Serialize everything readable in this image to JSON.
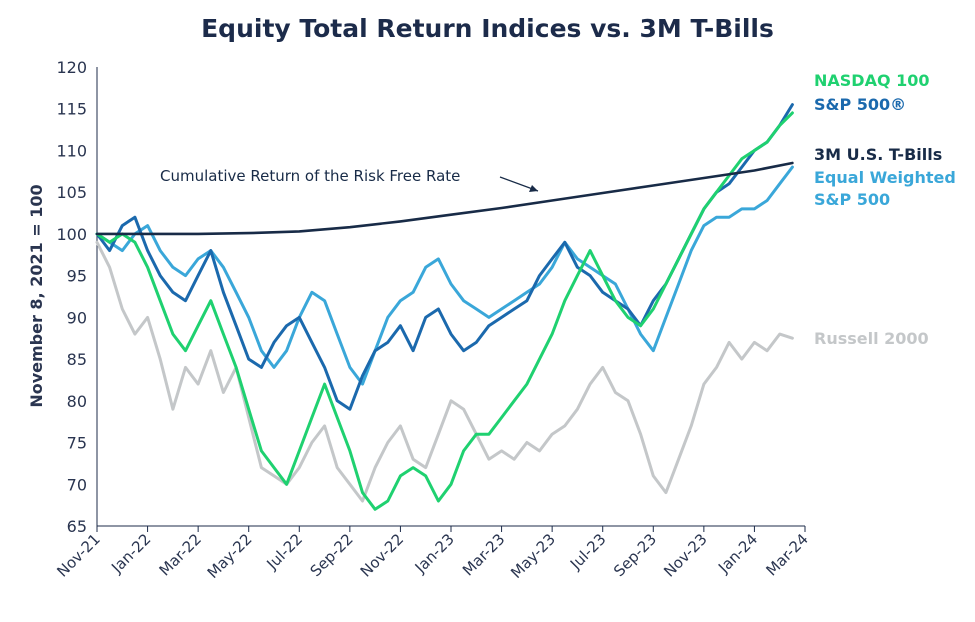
{
  "chart_data": {
    "type": "line",
    "title": "Equity Total Return Indices vs. 3M T-Bills",
    "ylabel": "November 8, 2021 = 100",
    "xlabel": "",
    "ylim": [
      65,
      120
    ],
    "yticks": [
      "65",
      "70",
      "75",
      "80",
      "85",
      "90",
      "95",
      "100",
      "105",
      "110",
      "115",
      "120"
    ],
    "xticks": [
      "Nov-21",
      "Jan-22",
      "Mar-22",
      "May-22",
      "Jul-22",
      "Sep-22",
      "Nov-22",
      "Jan-23",
      "Mar-23",
      "May-23",
      "Jul-23",
      "Sep-23",
      "Nov-23",
      "Jan-24",
      "Mar-24"
    ],
    "x_unit": "months since Nov-21 (0 = Nov-21, 28 = Mar-24)",
    "grid": false,
    "legend": "labels at right end of lines",
    "annotation": "Cumulative Return of the Risk Free Rate",
    "series": [
      {
        "name": "Russell 2000",
        "color": "#c4c7c9",
        "points": [
          [
            0,
            99
          ],
          [
            0.5,
            96
          ],
          [
            1,
            91
          ],
          [
            1.5,
            88
          ],
          [
            2,
            90
          ],
          [
            2.5,
            85
          ],
          [
            3,
            79
          ],
          [
            3.5,
            84
          ],
          [
            4,
            82
          ],
          [
            4.5,
            86
          ],
          [
            5,
            81
          ],
          [
            5.5,
            84
          ],
          [
            6,
            78
          ],
          [
            6.5,
            72
          ],
          [
            7,
            71
          ],
          [
            7.5,
            70
          ],
          [
            8,
            72
          ],
          [
            8.5,
            75
          ],
          [
            9,
            77
          ],
          [
            9.5,
            72
          ],
          [
            10,
            70
          ],
          [
            10.5,
            68
          ],
          [
            11,
            72
          ],
          [
            11.5,
            75
          ],
          [
            12,
            77
          ],
          [
            12.5,
            73
          ],
          [
            13,
            72
          ],
          [
            13.5,
            76
          ],
          [
            14,
            80
          ],
          [
            14.5,
            79
          ],
          [
            15,
            76
          ],
          [
            15.5,
            73
          ],
          [
            16,
            74
          ],
          [
            16.5,
            73
          ],
          [
            17,
            75
          ],
          [
            17.5,
            74
          ],
          [
            18,
            76
          ],
          [
            18.5,
            77
          ],
          [
            19,
            79
          ],
          [
            19.5,
            82
          ],
          [
            20,
            84
          ],
          [
            20.5,
            81
          ],
          [
            21,
            80
          ],
          [
            21.5,
            76
          ],
          [
            22,
            71
          ],
          [
            22.5,
            69
          ],
          [
            23,
            73
          ],
          [
            23.5,
            77
          ],
          [
            24,
            82
          ],
          [
            24.5,
            84
          ],
          [
            25,
            87
          ],
          [
            25.5,
            85
          ],
          [
            26,
            87
          ],
          [
            26.5,
            86
          ],
          [
            27,
            88
          ],
          [
            27.5,
            87.5
          ]
        ]
      },
      {
        "name": "Equal Weighted S&P 500",
        "color": "#3aa7d9",
        "points": [
          [
            0,
            100
          ],
          [
            0.5,
            99
          ],
          [
            1,
            98
          ],
          [
            1.5,
            100
          ],
          [
            2,
            101
          ],
          [
            2.5,
            98
          ],
          [
            3,
            96
          ],
          [
            3.5,
            95
          ],
          [
            4,
            97
          ],
          [
            4.5,
            98
          ],
          [
            5,
            96
          ],
          [
            5.5,
            93
          ],
          [
            6,
            90
          ],
          [
            6.5,
            86
          ],
          [
            7,
            84
          ],
          [
            7.5,
            86
          ],
          [
            8,
            90
          ],
          [
            8.5,
            93
          ],
          [
            9,
            92
          ],
          [
            9.5,
            88
          ],
          [
            10,
            84
          ],
          [
            10.5,
            82
          ],
          [
            11,
            86
          ],
          [
            11.5,
            90
          ],
          [
            12,
            92
          ],
          [
            12.5,
            93
          ],
          [
            13,
            96
          ],
          [
            13.5,
            97
          ],
          [
            14,
            94
          ],
          [
            14.5,
            92
          ],
          [
            15,
            91
          ],
          [
            15.5,
            90
          ],
          [
            16,
            91
          ],
          [
            16.5,
            92
          ],
          [
            17,
            93
          ],
          [
            17.5,
            94
          ],
          [
            18,
            96
          ],
          [
            18.5,
            99
          ],
          [
            19,
            97
          ],
          [
            19.5,
            96
          ],
          [
            20,
            95
          ],
          [
            20.5,
            94
          ],
          [
            21,
            91
          ],
          [
            21.5,
            88
          ],
          [
            22,
            86
          ],
          [
            22.5,
            90
          ],
          [
            23,
            94
          ],
          [
            23.5,
            98
          ],
          [
            24,
            101
          ],
          [
            24.5,
            102
          ],
          [
            25,
            102
          ],
          [
            25.5,
            103
          ],
          [
            26,
            103
          ],
          [
            26.5,
            104
          ],
          [
            27,
            106
          ],
          [
            27.5,
            108
          ]
        ]
      },
      {
        "name": "S&P 500®",
        "color": "#1b69ad",
        "points": [
          [
            0,
            100
          ],
          [
            0.5,
            98
          ],
          [
            1,
            101
          ],
          [
            1.5,
            102
          ],
          [
            2,
            98
          ],
          [
            2.5,
            95
          ],
          [
            3,
            93
          ],
          [
            3.5,
            92
          ],
          [
            4,
            95
          ],
          [
            4.5,
            98
          ],
          [
            5,
            93
          ],
          [
            5.5,
            89
          ],
          [
            6,
            85
          ],
          [
            6.5,
            84
          ],
          [
            7,
            87
          ],
          [
            7.5,
            89
          ],
          [
            8,
            90
          ],
          [
            8.5,
            87
          ],
          [
            9,
            84
          ],
          [
            9.5,
            80
          ],
          [
            10,
            79
          ],
          [
            10.5,
            83
          ],
          [
            11,
            86
          ],
          [
            11.5,
            87
          ],
          [
            12,
            89
          ],
          [
            12.5,
            86
          ],
          [
            13,
            90
          ],
          [
            13.5,
            91
          ],
          [
            14,
            88
          ],
          [
            14.5,
            86
          ],
          [
            15,
            87
          ],
          [
            15.5,
            89
          ],
          [
            16,
            90
          ],
          [
            16.5,
            91
          ],
          [
            17,
            92
          ],
          [
            17.5,
            95
          ],
          [
            18,
            97
          ],
          [
            18.5,
            99
          ],
          [
            19,
            96
          ],
          [
            19.5,
            95
          ],
          [
            20,
            93
          ],
          [
            20.5,
            92
          ],
          [
            21,
            91
          ],
          [
            21.5,
            89
          ],
          [
            22,
            92
          ],
          [
            22.5,
            94
          ],
          [
            23,
            97
          ],
          [
            23.5,
            100
          ],
          [
            24,
            103
          ],
          [
            24.5,
            105
          ],
          [
            25,
            106
          ],
          [
            25.5,
            108
          ],
          [
            26,
            110
          ],
          [
            26.5,
            111
          ],
          [
            27,
            113
          ],
          [
            27.5,
            115.5
          ]
        ]
      },
      {
        "name": "NASDAQ 100",
        "color": "#1fd170",
        "points": [
          [
            0,
            100
          ],
          [
            0.5,
            99
          ],
          [
            1,
            100
          ],
          [
            1.5,
            99
          ],
          [
            2,
            96
          ],
          [
            2.5,
            92
          ],
          [
            3,
            88
          ],
          [
            3.5,
            86
          ],
          [
            4,
            89
          ],
          [
            4.5,
            92
          ],
          [
            5,
            88
          ],
          [
            5.5,
            84
          ],
          [
            6,
            79
          ],
          [
            6.5,
            74
          ],
          [
            7,
            72
          ],
          [
            7.5,
            70
          ],
          [
            8,
            74
          ],
          [
            8.5,
            78
          ],
          [
            9,
            82
          ],
          [
            9.5,
            78
          ],
          [
            10,
            74
          ],
          [
            10.5,
            69
          ],
          [
            11,
            67
          ],
          [
            11.5,
            68
          ],
          [
            12,
            71
          ],
          [
            12.5,
            72
          ],
          [
            13,
            71
          ],
          [
            13.5,
            68
          ],
          [
            14,
            70
          ],
          [
            14.5,
            74
          ],
          [
            15,
            76
          ],
          [
            15.5,
            76
          ],
          [
            16,
            78
          ],
          [
            16.5,
            80
          ],
          [
            17,
            82
          ],
          [
            17.5,
            85
          ],
          [
            18,
            88
          ],
          [
            18.5,
            92
          ],
          [
            19,
            95
          ],
          [
            19.5,
            98
          ],
          [
            20,
            95
          ],
          [
            20.5,
            92
          ],
          [
            21,
            90
          ],
          [
            21.5,
            89
          ],
          [
            22,
            91
          ],
          [
            22.5,
            94
          ],
          [
            23,
            97
          ],
          [
            23.5,
            100
          ],
          [
            24,
            103
          ],
          [
            24.5,
            105
          ],
          [
            25,
            107
          ],
          [
            25.5,
            109
          ],
          [
            26,
            110
          ],
          [
            26.5,
            111
          ],
          [
            27,
            113
          ],
          [
            27.5,
            114.5
          ]
        ]
      },
      {
        "name": "3M U.S. T-Bills",
        "color": "#182b47",
        "points": [
          [
            0,
            100
          ],
          [
            2,
            100
          ],
          [
            4,
            100
          ],
          [
            6,
            100.1
          ],
          [
            8,
            100.3
          ],
          [
            10,
            100.8
          ],
          [
            12,
            101.5
          ],
          [
            14,
            102.3
          ],
          [
            16,
            103.1
          ],
          [
            18,
            104
          ],
          [
            20,
            104.9
          ],
          [
            22,
            105.8
          ],
          [
            24,
            106.7
          ],
          [
            26,
            107.6
          ],
          [
            27.5,
            108.5
          ]
        ]
      }
    ]
  }
}
